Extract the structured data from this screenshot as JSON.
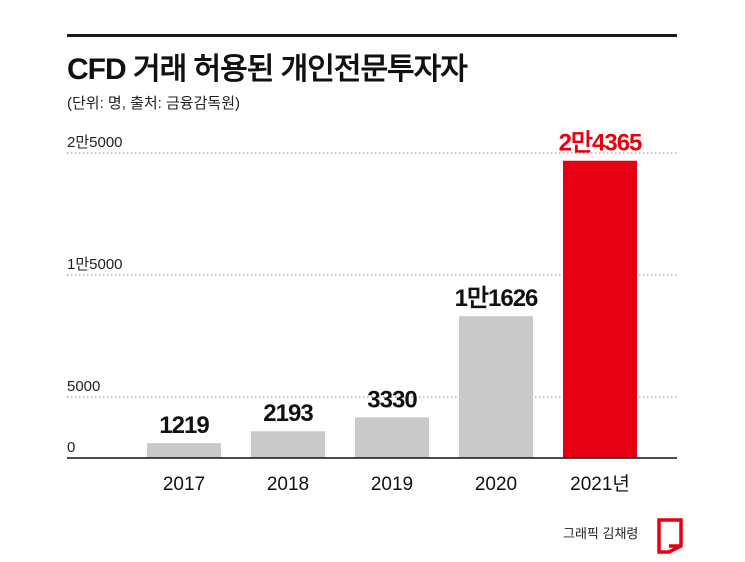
{
  "header": {
    "title": "CFD 거래 허용된 개인전문투자자",
    "subtitle": "(단위: 명, 출처: 금융감독원)"
  },
  "chart_data": {
    "type": "bar",
    "title": "CFD 거래 허용된 개인전문투자자",
    "categories": [
      "2017",
      "2018",
      "2019",
      "2020",
      "2021년"
    ],
    "values": [
      1219,
      2193,
      3330,
      11626,
      24365
    ],
    "value_labels": [
      "1219",
      "2193",
      "3330",
      "1만1626",
      "2만4365"
    ],
    "y_ticks": [
      0,
      5000,
      15000,
      25000
    ],
    "y_tick_labels": [
      "0",
      "5000",
      "1만5000",
      "2만5000"
    ],
    "ylim": [
      0,
      25000
    ],
    "grid": true,
    "colors": {
      "bar": "#c9c9c9",
      "highlight": "#e60012",
      "highlight_label": "#e60012",
      "grid": "#888888"
    }
  },
  "footer": {
    "credit": "그래픽 김채령"
  }
}
